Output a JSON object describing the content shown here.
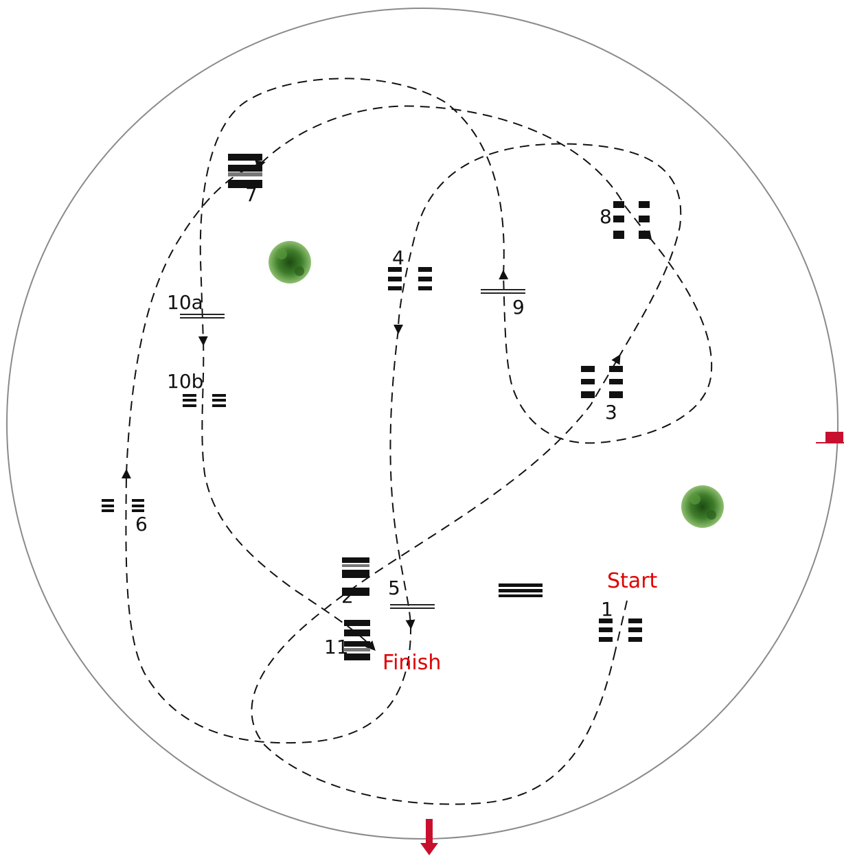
{
  "labels": {
    "j1": "1",
    "j2": "2",
    "j3": "3",
    "j4": "4",
    "j5": "5",
    "j6": "6",
    "j7": "7",
    "j8": "8",
    "j9": "9",
    "j10a": "10a",
    "j10b": "10b",
    "j11": "11",
    "start": "Start",
    "finish": "Finish"
  },
  "colors": {
    "arena": "#8a8a8a",
    "route": "#111111",
    "start_finish_text": "#e00000",
    "exit_arrow": "#c8102e",
    "tree": "#3e7d2a"
  },
  "icons": [
    "tree-icon",
    "exit-arrow-icon",
    "jump-vertical-icon",
    "jump-oxer-icon",
    "jump-combination-icon"
  ]
}
